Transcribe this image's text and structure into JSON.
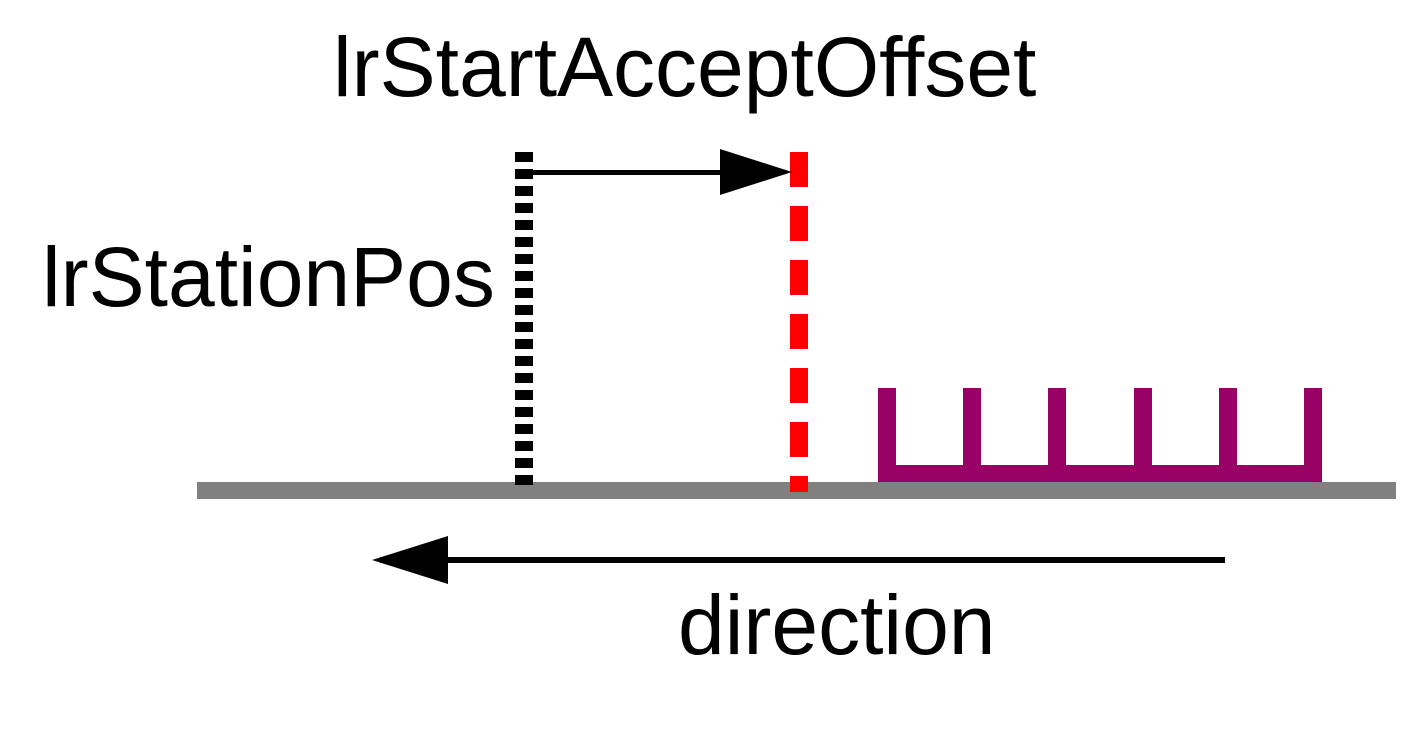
{
  "diagram": {
    "title": "lrStartAcceptOffset",
    "station_label": "lrStationPos",
    "direction_label": "direction"
  },
  "colors": {
    "station_line": "#000000",
    "accept_offset_line": "#ff0000",
    "arrows": "#000000",
    "conveyor": "#808080",
    "workpiece": "#990066",
    "text": "#000000",
    "background": "#ffffff"
  }
}
